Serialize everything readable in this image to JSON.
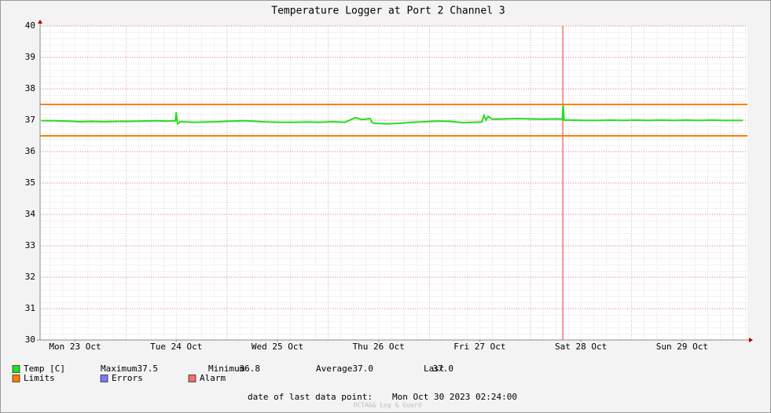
{
  "chart_data": {
    "type": "line",
    "title": "Temperature Logger at Port 2 Channel 3",
    "xlim": [
      3.7,
      171.5
    ],
    "xticks": [
      {
        "value": 12,
        "label": "Mon 23 Oct"
      },
      {
        "value": 36,
        "label": "Tue 24 Oct"
      },
      {
        "value": 60,
        "label": "Wed 25 Oct"
      },
      {
        "value": 84,
        "label": "Thu 26 Oct"
      },
      {
        "value": 108,
        "label": "Fri 27 Oct"
      },
      {
        "value": 132,
        "label": "Sat 28 Oct"
      },
      {
        "value": 156,
        "label": "Sun 29 Oct"
      }
    ],
    "ylim": [
      30,
      40
    ],
    "yticks": [
      30,
      31,
      32,
      33,
      34,
      35,
      36,
      37,
      38,
      39,
      40
    ],
    "grid": true,
    "vrules": [
      {
        "x": 127.7,
        "color": "#ee3333"
      }
    ],
    "series": [
      {
        "name": "Temp [C]",
        "color": "#22e022",
        "x": [
          4,
          7,
          10,
          13,
          16,
          19,
          22,
          25,
          28,
          31,
          34,
          35.8,
          36,
          36.3,
          37,
          40,
          43,
          46,
          49,
          52,
          55,
          58,
          61,
          64,
          67,
          70,
          73,
          76,
          78.5,
          80,
          82,
          82.5,
          83,
          86,
          89,
          92,
          95,
          98,
          101,
          104,
          108.5,
          109,
          109.5,
          110,
          111,
          114,
          117,
          120,
          123,
          126,
          127.6,
          127.8,
          128,
          130,
          133,
          136,
          139,
          142,
          145,
          148,
          151,
          154,
          157,
          160,
          163,
          166,
          170.4
        ],
        "values": [
          36.98,
          36.98,
          36.97,
          36.95,
          36.96,
          36.95,
          36.96,
          36.96,
          36.97,
          36.98,
          36.97,
          36.98,
          37.25,
          36.88,
          36.95,
          36.93,
          36.94,
          36.95,
          36.97,
          36.98,
          36.96,
          36.94,
          36.93,
          36.93,
          36.94,
          36.93,
          36.95,
          36.93,
          37.08,
          37.02,
          37.05,
          36.92,
          36.9,
          36.88,
          36.9,
          36.93,
          36.95,
          36.97,
          36.96,
          36.92,
          36.94,
          37.15,
          37.0,
          37.12,
          37.03,
          37.04,
          37.05,
          37.04,
          37.03,
          37.04,
          37.03,
          37.5,
          37.0,
          37.0,
          36.99,
          36.99,
          37.0,
          36.99,
          37.0,
          36.99,
          37.0,
          36.99,
          37.0,
          36.99,
          37.0,
          36.99,
          36.99
        ]
      },
      {
        "name": "Limits",
        "color": "#ff7f00",
        "values": [
          37.5,
          36.5
        ]
      },
      {
        "name": "Errors",
        "color": "#7b7bf0",
        "values": []
      },
      {
        "name": "Alarm",
        "color": "#ee7070",
        "values": []
      }
    ],
    "stats": {
      "names": [
        "Maximum",
        "Minimum",
        "Average",
        "Last"
      ],
      "values": [
        37.5,
        36.8,
        37.0,
        37.0
      ],
      "value_labels": [
        "37.5",
        "36.8",
        "37.0",
        "37.0"
      ]
    },
    "footer": {
      "label": "date of last data point:",
      "date": "Mon Oct 30 2023 02:24:00"
    },
    "watermark": "OCTA&& Log & Guard"
  }
}
